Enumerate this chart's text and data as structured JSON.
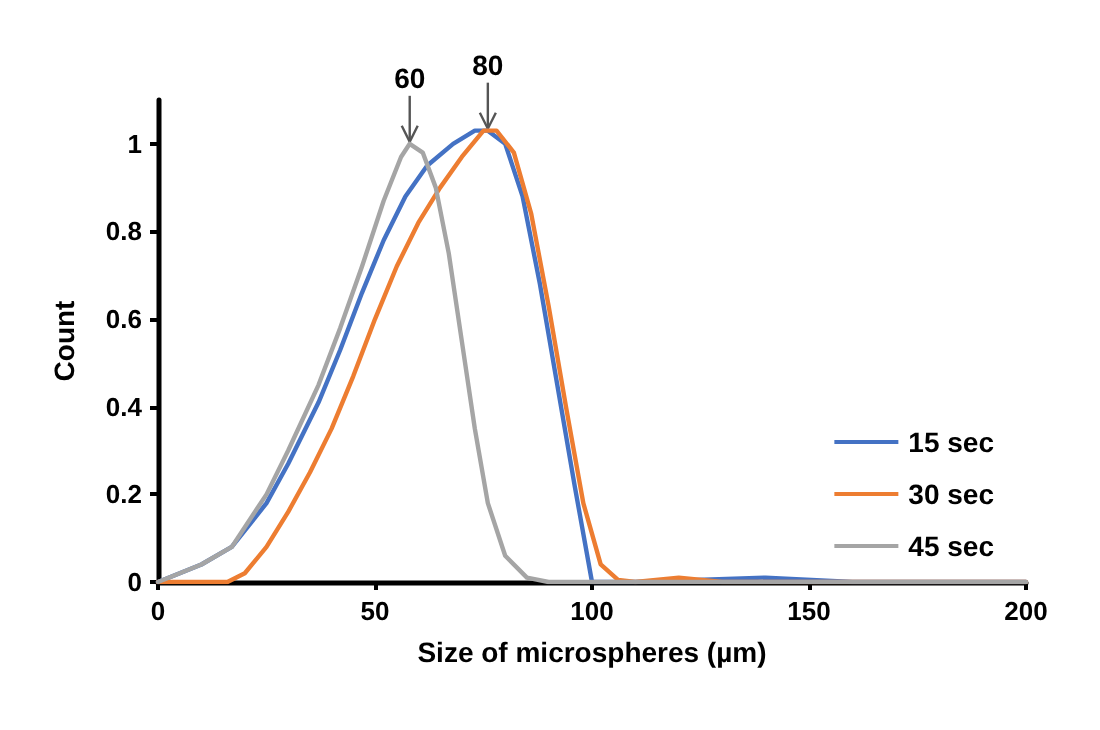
{
  "chart_data": {
    "type": "line",
    "xlabel": "Size of microspheres (µm)",
    "ylabel": "Count",
    "xlim": [
      0,
      200
    ],
    "xticks": [
      0,
      50,
      100,
      150,
      200
    ],
    "ylim": [
      0,
      1.1
    ],
    "yticks": [
      0,
      0.2,
      0.4,
      0.6,
      0.8,
      1
    ],
    "grid": false,
    "legend": "bottom right",
    "marker": "none",
    "line_style": "solid",
    "annotations": [
      {
        "text": "60",
        "x": 58,
        "y": 1.0
      },
      {
        "text": "80",
        "x": 76,
        "y": 1.03
      }
    ],
    "series": [
      {
        "name": "15 sec",
        "color": "#4472c4",
        "x": [
          0,
          10,
          17,
          25,
          30,
          37,
          42,
          47,
          52,
          57,
          62,
          68,
          73,
          76,
          80,
          84,
          88,
          92,
          96,
          100,
          110,
          140,
          160,
          200
        ],
        "values": [
          0,
          0.04,
          0.08,
          0.18,
          0.27,
          0.41,
          0.53,
          0.66,
          0.78,
          0.88,
          0.95,
          1.0,
          1.03,
          1.03,
          1.0,
          0.88,
          0.68,
          0.45,
          0.22,
          0,
          0,
          0.01,
          0,
          0
        ]
      },
      {
        "name": "30 sec",
        "color": "#ed7d31",
        "x": [
          0,
          16,
          20,
          25,
          30,
          35,
          40,
          45,
          50,
          55,
          60,
          65,
          70,
          75,
          78,
          82,
          86,
          90,
          94,
          98,
          102,
          106,
          110,
          120,
          130,
          200
        ],
        "values": [
          0,
          0,
          0.02,
          0.08,
          0.16,
          0.25,
          0.35,
          0.47,
          0.6,
          0.72,
          0.82,
          0.9,
          0.97,
          1.03,
          1.03,
          0.98,
          0.84,
          0.63,
          0.4,
          0.18,
          0.04,
          0.005,
          0,
          0.01,
          0,
          0
        ]
      },
      {
        "name": "45 sec",
        "color": "#a5a5a5",
        "x": [
          0,
          10,
          17,
          25,
          30,
          37,
          42,
          47,
          52,
          56,
          58,
          61,
          64,
          67,
          70,
          73,
          76,
          80,
          85,
          90,
          200
        ],
        "values": [
          0,
          0.04,
          0.08,
          0.2,
          0.3,
          0.45,
          0.58,
          0.72,
          0.87,
          0.97,
          1.0,
          0.98,
          0.9,
          0.75,
          0.55,
          0.35,
          0.18,
          0.06,
          0.01,
          0,
          0
        ]
      }
    ]
  }
}
